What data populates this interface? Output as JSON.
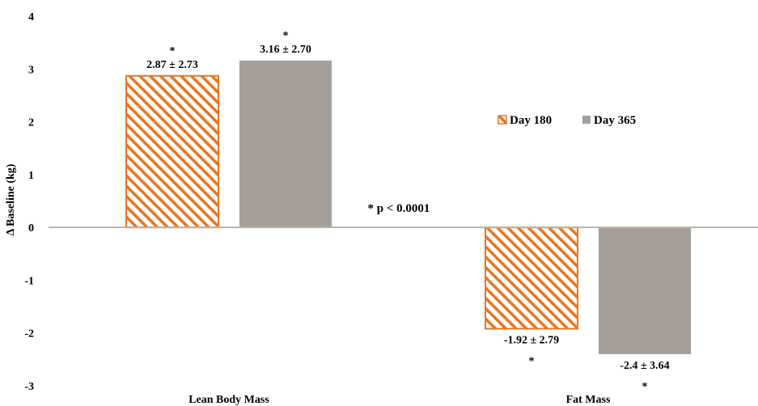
{
  "chart_data": {
    "type": "bar",
    "title": "",
    "xlabel": "",
    "ylabel": "Δ Baseline (kg)",
    "ylim": [
      -3,
      4
    ],
    "yticks": [
      4,
      3,
      2,
      1,
      0,
      -1,
      -2,
      -3
    ],
    "grid": false,
    "legend_position": "center-right",
    "categories": [
      "Lean Body Mass",
      "Fat Mass"
    ],
    "series": [
      {
        "name": "Day 180",
        "values": [
          2.87,
          -1.92
        ],
        "labels": [
          "2.87 ± 2.73",
          "-1.92 ± 2.79"
        ],
        "significance": [
          "*",
          "*"
        ],
        "color": "#E87722",
        "pattern": "diagonal-hatch"
      },
      {
        "name": "Day 365",
        "values": [
          3.16,
          -2.4
        ],
        "labels": [
          "3.16 ± 2.70",
          "-2.4 ± 3.64"
        ],
        "significance": [
          "*",
          "*"
        ],
        "color": "#A59E99",
        "pattern": "solid"
      }
    ],
    "annotation": "* p < 0.0001"
  }
}
